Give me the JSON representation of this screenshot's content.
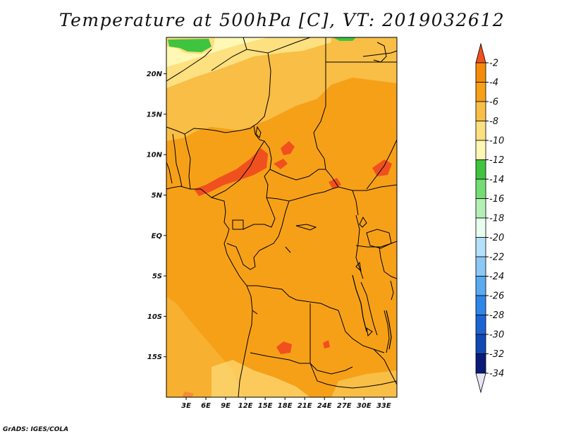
{
  "title": "Temperature at 500hPa [C], VT: 2019032612",
  "credit": "GrADS: IGES/COLA",
  "map": {
    "lon_range": [
      0,
      35
    ],
    "lat_range": [
      -20,
      24.5
    ],
    "lon_ticks": [
      {
        "v": 3,
        "label": "3E"
      },
      {
        "v": 6,
        "label": "6E"
      },
      {
        "v": 9,
        "label": "9E"
      },
      {
        "v": 12,
        "label": "12E"
      },
      {
        "v": 15,
        "label": "15E"
      },
      {
        "v": 18,
        "label": "18E"
      },
      {
        "v": 21,
        "label": "21E"
      },
      {
        "v": 24,
        "label": "24E"
      },
      {
        "v": 27,
        "label": "27E"
      },
      {
        "v": 30,
        "label": "30E"
      },
      {
        "v": 33,
        "label": "33E"
      }
    ],
    "lat_ticks": [
      {
        "v": 20,
        "label": "20N"
      },
      {
        "v": 15,
        "label": "15N"
      },
      {
        "v": 10,
        "label": "10N"
      },
      {
        "v": 5,
        "label": "5N"
      },
      {
        "v": 0,
        "label": "EQ"
      },
      {
        "v": -5,
        "label": "5S"
      },
      {
        "v": -10,
        "label": "10S"
      },
      {
        "v": -15,
        "label": "15S"
      }
    ]
  },
  "colorbar": {
    "levels": [
      "-2",
      "-4",
      "-6",
      "-8",
      "-10",
      "-12",
      "-14",
      "-16",
      "-18",
      "-20",
      "-22",
      "-24",
      "-26",
      "-28",
      "-30",
      "-32",
      "-34"
    ],
    "colors": [
      "#f0501e",
      "#f48c0a",
      "#f6a018",
      "#f8be46",
      "#fde080",
      "#fff7b4",
      "#3ec43e",
      "#74dc74",
      "#b4f0b4",
      "#e8fff0",
      "#b4e0fa",
      "#8cc8f4",
      "#5aaaf0",
      "#2e86e8",
      "#1c64d2",
      "#1248b4",
      "#0a1a78",
      "#e6e6f8"
    ]
  },
  "colors": {
    "land_dominant": "#f6a018",
    "north_band": "#f8be46",
    "north_pale": "#fde080",
    "far_north": "#fff7b4",
    "warm_patch": "#f0501e",
    "green_patch": "#3ec43e"
  }
}
